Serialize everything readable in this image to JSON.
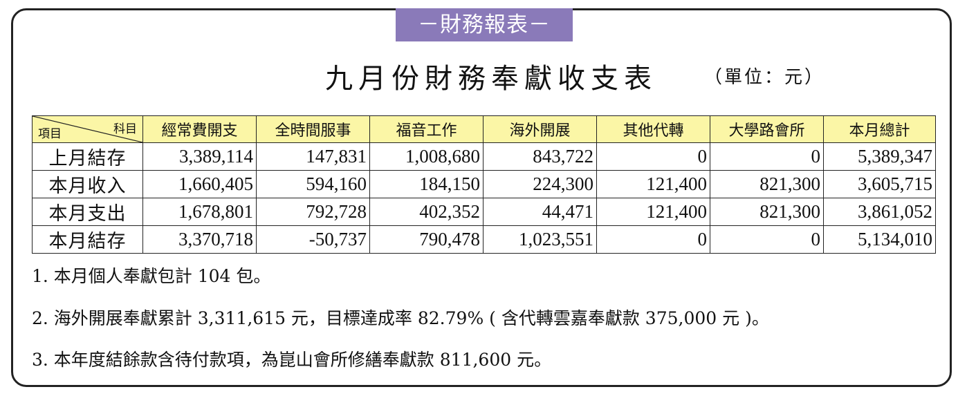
{
  "banner": "－財務報表－",
  "title": "九月份財務奉獻收支表",
  "unit": "（單位：元）",
  "table": {
    "corner_row_label": "項目",
    "corner_col_label": "科目",
    "columns": [
      "經常費開支",
      "全時間服事",
      "福音工作",
      "海外開展",
      "其他代轉",
      "大學路會所",
      "本月總計"
    ],
    "rows": [
      {
        "label": "上月結存",
        "values": [
          "3,389,114",
          "147,831",
          "1,008,680",
          "843,722",
          "0",
          "0",
          "5,389,347"
        ]
      },
      {
        "label": "本月收入",
        "values": [
          "1,660,405",
          "594,160",
          "184,150",
          "224,300",
          "121,400",
          "821,300",
          "3,605,715"
        ]
      },
      {
        "label": "本月支出",
        "values": [
          "1,678,801",
          "792,728",
          "402,352",
          "44,471",
          "121,400",
          "821,300",
          "3,861,052"
        ]
      },
      {
        "label": "本月結存",
        "values": [
          "3,370,718",
          "-50,737",
          "790,478",
          "1,023,551",
          "0",
          "0",
          "5,134,010"
        ]
      }
    ]
  },
  "notes": [
    "1. 本月個人奉獻包計 104 包。",
    "2. 海外開展奉獻累計  3,311,615 元，目標達成率 82.79% ( 含代轉雲嘉奉獻款 375,000 元 )。",
    "3. 本年度結餘款含待付款項，為崑山會所修繕奉獻款 811,600 元。"
  ],
  "colors": {
    "banner_bg": "#8a7ab9",
    "header_bg": "#fbf6a6",
    "border": "#222222"
  }
}
